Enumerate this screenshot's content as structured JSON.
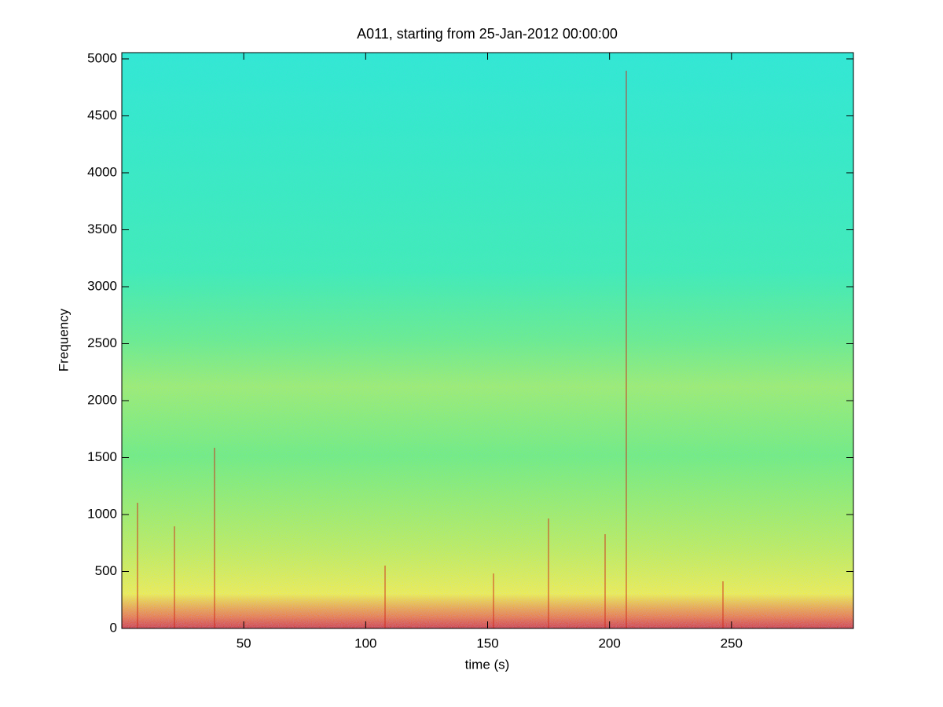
{
  "chart_data": {
    "type": "spectrogram",
    "title": "A011, starting from 25-Jan-2012 00:00:00",
    "x_label": "time (s)",
    "y_label": "Frequency",
    "xlim": [
      0,
      300
    ],
    "xticks": [
      50,
      100,
      150,
      200,
      250
    ],
    "ylim": [
      0,
      5055
    ],
    "yticks": [
      0,
      500,
      1000,
      1500,
      2000,
      2500,
      3000,
      3500,
      4000,
      4500,
      5000
    ]
  }
}
